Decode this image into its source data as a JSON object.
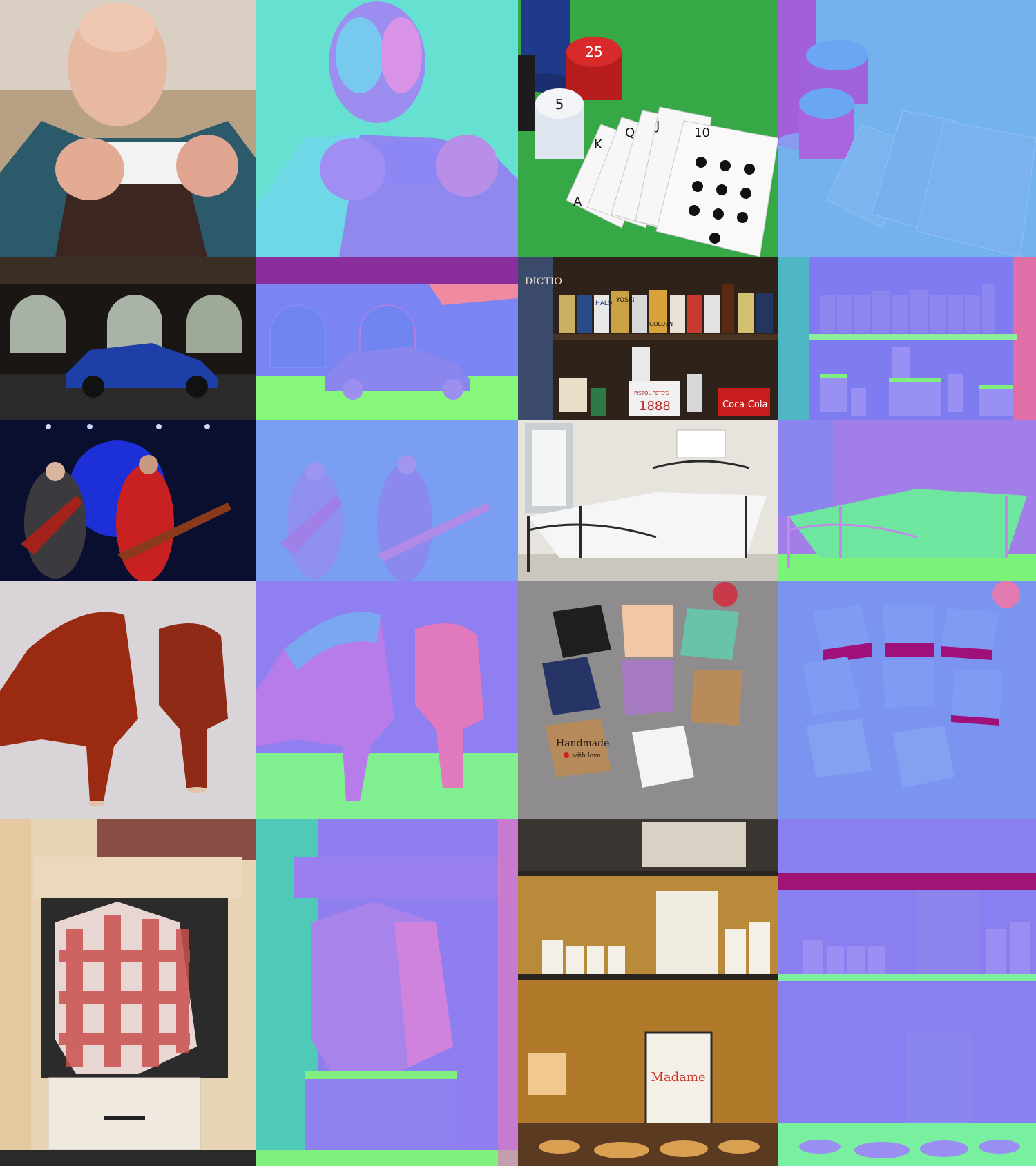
{
  "rows": [
    {
      "photo": {
        "name": "elderly-man-smartphone",
        "printed_text": []
      },
      "photo_b": {
        "name": "poker-chips-cards",
        "printed_text": [
          "25",
          "5",
          "K",
          "Q",
          "J",
          "10",
          "A"
        ]
      }
    },
    {
      "photo": {
        "name": "blue-car-garage",
        "printed_text": []
      },
      "photo_b": {
        "name": "beer-can-shelf",
        "printed_text": [
          "DICTIO",
          "YOSKI",
          "HALO",
          "GOLDEN",
          "1888",
          "PISTOL PETE'S",
          "Coca-Cola"
        ]
      }
    },
    {
      "photo": {
        "name": "guitarists-on-stage",
        "printed_text": []
      },
      "photo_b": {
        "name": "iron-bed-bedroom",
        "printed_text": []
      }
    },
    {
      "photo": {
        "name": "red-leather-heels",
        "printed_text": []
      },
      "photo_b": {
        "name": "craft-boxes",
        "printed_text": [
          "Handmade",
          "with love"
        ]
      }
    },
    {
      "photo": {
        "name": "shirt-hanging-drawer",
        "printed_text": []
      },
      "photo_b": {
        "name": "shop-shelves",
        "printed_text": [
          "Madame"
        ]
      }
    }
  ],
  "colors": {
    "normal_x": "#7f7fff",
    "normal_up": "#7fff7f",
    "normal_left": "#5fdfc8",
    "normal_right": "#d66fe0"
  }
}
